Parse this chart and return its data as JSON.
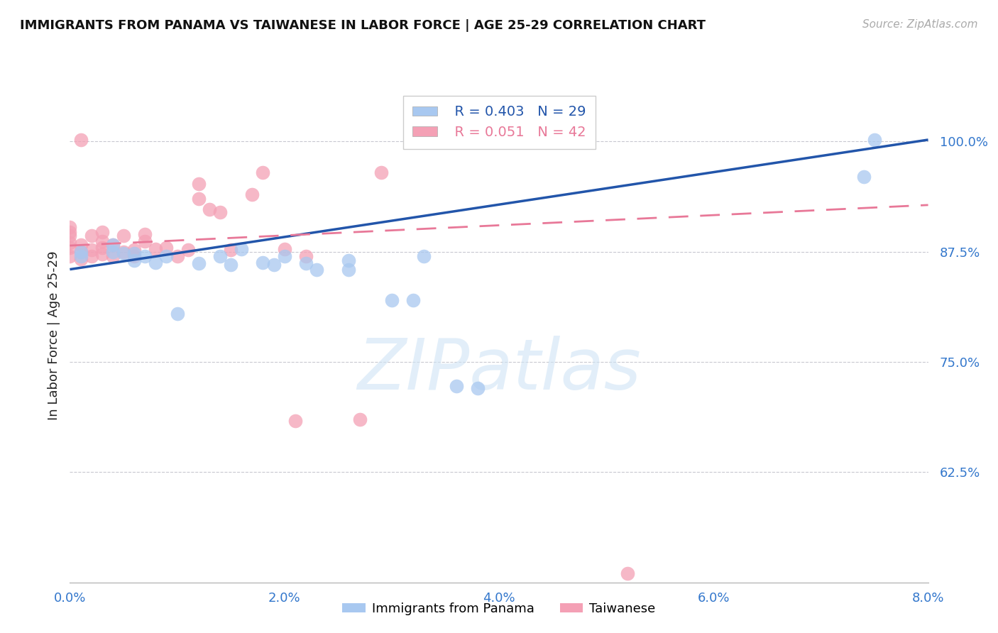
{
  "title": "IMMIGRANTS FROM PANAMA VS TAIWANESE IN LABOR FORCE | AGE 25-29 CORRELATION CHART",
  "source": "Source: ZipAtlas.com",
  "ylabel": "In Labor Force | Age 25-29",
  "xlabel_ticks": [
    "0.0%",
    "2.0%",
    "4.0%",
    "6.0%",
    "8.0%"
  ],
  "xlabel_vals": [
    0.0,
    0.02,
    0.04,
    0.06,
    0.08
  ],
  "ylabel_ticks": [
    "62.5%",
    "75.0%",
    "87.5%",
    "100.0%"
  ],
  "ylabel_vals": [
    0.625,
    0.75,
    0.875,
    1.0
  ],
  "xlim": [
    0.0,
    0.08
  ],
  "ylim": [
    0.5,
    1.06
  ],
  "panama_R": 0.403,
  "panama_N": 29,
  "taiwanese_R": 0.051,
  "taiwanese_N": 42,
  "panama_color": "#A8C8F0",
  "taiwanese_color": "#F4A0B5",
  "panama_line_color": "#2255AA",
  "taiwanese_line_color": "#E87898",
  "watermark_color": "#D0E4F5",
  "panama_x": [
    0.001,
    0.001,
    0.004,
    0.004,
    0.005,
    0.006,
    0.006,
    0.007,
    0.008,
    0.009,
    0.01,
    0.012,
    0.014,
    0.015,
    0.016,
    0.018,
    0.019,
    0.02,
    0.022,
    0.023,
    0.026,
    0.026,
    0.03,
    0.032,
    0.033,
    0.036,
    0.038,
    0.074,
    0.075
  ],
  "panama_y": [
    0.875,
    0.87,
    0.875,
    0.883,
    0.873,
    0.865,
    0.873,
    0.87,
    0.863,
    0.87,
    0.805,
    0.862,
    0.87,
    0.86,
    0.878,
    0.863,
    0.86,
    0.87,
    0.862,
    0.855,
    0.855,
    0.865,
    0.82,
    0.82,
    0.87,
    0.723,
    0.72,
    0.96,
    1.002
  ],
  "taiwanese_x": [
    0.0,
    0.0,
    0.0,
    0.0,
    0.0,
    0.0,
    0.001,
    0.001,
    0.001,
    0.002,
    0.002,
    0.002,
    0.003,
    0.003,
    0.003,
    0.003,
    0.004,
    0.004,
    0.005,
    0.005,
    0.006,
    0.006,
    0.007,
    0.007,
    0.008,
    0.009,
    0.01,
    0.011,
    0.012,
    0.012,
    0.013,
    0.014,
    0.015,
    0.017,
    0.018,
    0.02,
    0.021,
    0.022,
    0.027,
    0.029,
    0.001,
    0.052
  ],
  "taiwanese_y": [
    0.87,
    0.88,
    0.885,
    0.893,
    0.897,
    0.903,
    0.867,
    0.875,
    0.883,
    0.87,
    0.877,
    0.893,
    0.872,
    0.88,
    0.887,
    0.897,
    0.87,
    0.883,
    0.875,
    0.893,
    0.87,
    0.877,
    0.887,
    0.895,
    0.878,
    0.88,
    0.87,
    0.877,
    0.935,
    0.952,
    0.923,
    0.92,
    0.877,
    0.94,
    0.965,
    0.878,
    0.683,
    0.87,
    0.685,
    0.965,
    1.002,
    0.51
  ],
  "panama_line_x0": 0.0,
  "panama_line_y0": 0.855,
  "panama_line_x1": 0.08,
  "panama_line_y1": 1.002,
  "taiwanese_line_x0": 0.0,
  "taiwanese_line_y0": 0.882,
  "taiwanese_line_x1": 0.08,
  "taiwanese_line_y1": 0.928
}
